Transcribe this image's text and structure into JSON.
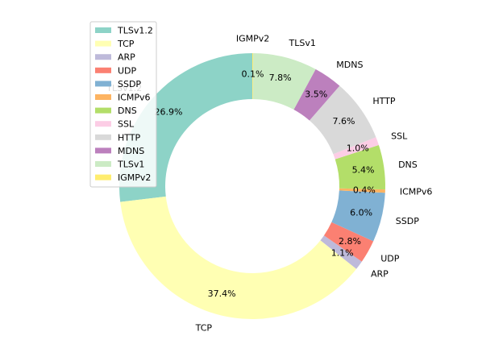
{
  "chart_data": {
    "type": "pie",
    "title": "",
    "donut": true,
    "categories": [
      "TLSv1.2",
      "TCP",
      "ARP",
      "UDP",
      "SSDP",
      "ICMPv6",
      "DNS",
      "SSL",
      "HTTP",
      "MDNS",
      "TLSv1",
      "IGMPv2"
    ],
    "values": [
      26.9,
      37.4,
      1.1,
      2.8,
      6.0,
      0.4,
      5.4,
      1.0,
      7.6,
      3.5,
      7.8,
      0.1
    ],
    "value_labels": [
      "26.9%",
      "37.4%",
      "1.1%",
      "2.8%",
      "6.0%",
      "0.4%",
      "5.4%",
      "1.0%",
      "7.6%",
      "3.5%",
      "7.8%",
      "0.1%"
    ],
    "colors": [
      "#8dd3c7",
      "#ffffb3",
      "#bebada",
      "#fb8072",
      "#80b1d3",
      "#fdb462",
      "#b3de69",
      "#fccde5",
      "#d9d9d9",
      "#bc80bd",
      "#ccebc5",
      "#ffed6f"
    ],
    "start_angle_deg": 90,
    "direction": "counterclockwise",
    "legend": {
      "placement": "upper-left",
      "entries": [
        "TLSv1.2",
        "TCP",
        "ARP",
        "UDP",
        "SSDP",
        "ICMPv6",
        "DNS",
        "SSL",
        "HTTP",
        "MDNS",
        "TLSv1",
        "IGMPv2"
      ]
    }
  }
}
